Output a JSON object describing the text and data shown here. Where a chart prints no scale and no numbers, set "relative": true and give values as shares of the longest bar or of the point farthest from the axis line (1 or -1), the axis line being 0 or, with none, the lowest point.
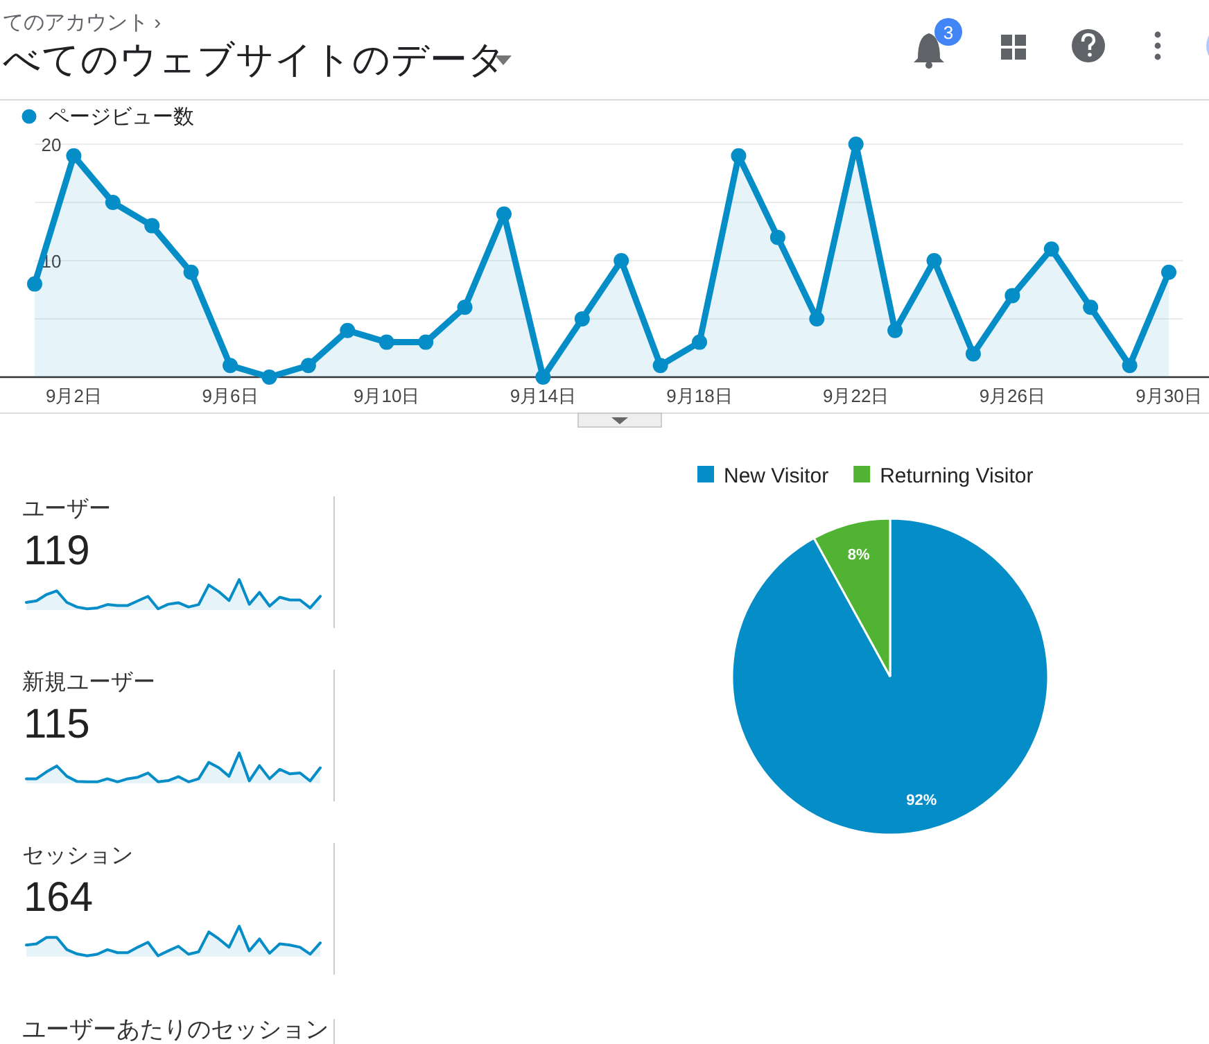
{
  "chart_data": [
    {
      "type": "other",
      "title": "べてのウェブサイトのデータ",
      "annotations": [
        "てのアカウント ›",
        "3"
      ]
    },
    {
      "type": "area",
      "categories": [
        null,
        "9月2日",
        null,
        null,
        null,
        "9月6日",
        null,
        null,
        null,
        "9月10日",
        null,
        null,
        null,
        "9月14日",
        null,
        null,
        null,
        "9月18日",
        null,
        null,
        null,
        "9月22日",
        null,
        null,
        null,
        "9月26日",
        null,
        null,
        null,
        "9月30日"
      ],
      "series": [
        {
          "name": "ページビュー数",
          "color": "#058dc7",
          "values": [
            8,
            19,
            15,
            13,
            9,
            1,
            0,
            1,
            4,
            3,
            3,
            6,
            14,
            0,
            5,
            10,
            1,
            3,
            19,
            12,
            5,
            20,
            4,
            10,
            2,
            7,
            11,
            6,
            1,
            9
          ]
        }
      ],
      "ylim": [
        0,
        20
      ],
      "yticks": [
        {
          "value": 5,
          "label": null
        },
        10,
        {
          "value": 15,
          "label": null
        },
        20
      ],
      "grid": "y",
      "marker": "circle",
      "legend": "top left"
    },
    {
      "type": "pie",
      "categories": [
        "New Visitor",
        "Returning Visitor"
      ],
      "values": [
        92,
        8
      ],
      "colors": [
        "#058dc7",
        "#50b432"
      ],
      "value_labels": [
        "92%",
        "8%"
      ],
      "legend": "top"
    },
    {
      "type": "area",
      "title": "ユーザー",
      "annotations": [
        "119"
      ],
      "relative": true,
      "categories": [
        null,
        null,
        null,
        null,
        null,
        null,
        null,
        null,
        null,
        null,
        null,
        null,
        null,
        null,
        null,
        null,
        null,
        null,
        null,
        null,
        null,
        null,
        null,
        null,
        null,
        null,
        null,
        null,
        null,
        null
      ],
      "series": [
        {
          "color": "#058dc7",
          "values": [
            0.25,
            0.3,
            0.51,
            0.63,
            0.25,
            0.1,
            0.04,
            0.07,
            0.18,
            0.15,
            0.15,
            0.3,
            0.45,
            0.04,
            0.19,
            0.24,
            0.1,
            0.18,
            0.82,
            0.6,
            0.31,
            1,
            0.19,
            0.58,
            0.13,
            0.42,
            0.33,
            0.33,
            0.07,
            0.45
          ]
        }
      ]
    },
    {
      "type": "area",
      "title": "新規ユーザー",
      "annotations": [
        "115"
      ],
      "relative": true,
      "categories": [
        null,
        null,
        null,
        null,
        null,
        null,
        null,
        null,
        null,
        null,
        null,
        null,
        null,
        null,
        null,
        null,
        null,
        null,
        null,
        null,
        null,
        null,
        null,
        null,
        null,
        null,
        null,
        null,
        null,
        null
      ],
      "series": [
        {
          "color": "#058dc7",
          "values": [
            0.15,
            0.15,
            0.38,
            0.57,
            0.23,
            0.06,
            0.05,
            0.05,
            0.15,
            0.05,
            0.15,
            0.2,
            0.34,
            0.05,
            0.09,
            0.22,
            0.05,
            0.15,
            0.69,
            0.51,
            0.23,
            1,
            0.08,
            0.58,
            0.15,
            0.46,
            0.31,
            0.34,
            0.08,
            0.51
          ]
        }
      ]
    },
    {
      "type": "area",
      "title": "セッション",
      "annotations": [
        "164"
      ],
      "relative": true,
      "categories": [
        null,
        null,
        null,
        null,
        null,
        null,
        null,
        null,
        null,
        null,
        null,
        null,
        null,
        null,
        null,
        null,
        null,
        null,
        null,
        null,
        null,
        null,
        null,
        null,
        null,
        null,
        null,
        null,
        null,
        null
      ],
      "series": [
        {
          "color": "#058dc7",
          "values": [
            0.38,
            0.42,
            0.63,
            0.63,
            0.23,
            0.09,
            0.03,
            0.08,
            0.23,
            0.13,
            0.13,
            0.31,
            0.47,
            0.03,
            0.19,
            0.34,
            0.08,
            0.16,
            0.81,
            0.58,
            0.31,
            1,
            0.19,
            0.58,
            0.11,
            0.42,
            0.38,
            0.31,
            0.08,
            0.45
          ]
        }
      ]
    },
    {
      "type": "other",
      "title": "ユーザーあたりのセッション"
    }
  ]
}
